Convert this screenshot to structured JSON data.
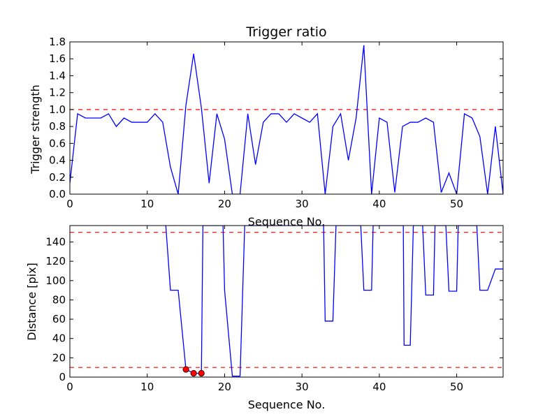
{
  "chart_data": [
    {
      "type": "line",
      "title": "Trigger ratio",
      "xlabel": "Sequence No.",
      "ylabel": "Trigger strength",
      "xlim": [
        0,
        56
      ],
      "ylim": [
        0,
        1.8
      ],
      "xticks": [
        0,
        10,
        20,
        30,
        40,
        50
      ],
      "yticks": [
        0.0,
        0.2,
        0.4,
        0.6,
        0.8,
        1.0,
        1.2,
        1.4,
        1.6,
        1.8
      ],
      "ytick_labels": [
        "0.0",
        "0.2",
        "0.4",
        "0.6",
        "0.8",
        "1.0",
        "1.2",
        "1.4",
        "1.6",
        "1.8"
      ],
      "grid": false,
      "series": [
        {
          "color": "#0000ff",
          "x": [
            0,
            1,
            2,
            3,
            4,
            5,
            6,
            7,
            8,
            9,
            10,
            11,
            12,
            13,
            14,
            15,
            16,
            17,
            18,
            19,
            20,
            21,
            22,
            23,
            24,
            25,
            26,
            27,
            28,
            29,
            30,
            31,
            32,
            33,
            34,
            35,
            36,
            37,
            38,
            39,
            40,
            41,
            42,
            43,
            44,
            45,
            46,
            47,
            48,
            49,
            50,
            51,
            52,
            53,
            54,
            55,
            56
          ],
          "values": [
            0.13,
            0.95,
            0.9,
            0.9,
            0.9,
            0.95,
            0.8,
            0.9,
            0.85,
            0.85,
            0.85,
            0.95,
            0.85,
            0.32,
            0.0,
            1.05,
            1.66,
            1.02,
            0.13,
            0.95,
            0.65,
            0.0,
            0.0,
            0.95,
            0.35,
            0.85,
            0.95,
            0.95,
            0.85,
            0.95,
            0.9,
            0.85,
            0.95,
            0.0,
            0.8,
            0.95,
            0.4,
            0.9,
            1.76,
            0.0,
            0.9,
            0.85,
            0.02,
            0.8,
            0.85,
            0.85,
            0.9,
            0.85,
            0.02,
            0.25,
            0.0,
            0.95,
            0.9,
            0.68,
            0.0,
            0.8,
            0.0
          ]
        }
      ],
      "hlines": [
        {
          "y": 1.0,
          "color": "#ff0000",
          "style": "dashed"
        }
      ]
    },
    {
      "type": "line",
      "title": "",
      "xlabel": "Sequence No.",
      "ylabel": "Distance [pix]",
      "xlim": [
        0,
        56
      ],
      "ylim": [
        0,
        157
      ],
      "xticks": [
        0,
        10,
        20,
        30,
        40,
        50
      ],
      "yticks": [
        0,
        20,
        40,
        60,
        80,
        100,
        120,
        140
      ],
      "ytick_labels": [
        "0",
        "20",
        "40",
        "60",
        "80",
        "100",
        "120",
        "140"
      ],
      "grid": false,
      "series": [
        {
          "color": "#0000ff",
          "x": [
            12.4,
            13,
            14,
            15,
            16,
            17,
            17.2,
            19.8,
            20,
            21,
            22,
            22.6,
            32.8,
            33,
            34,
            34.4,
            37.6,
            38,
            39,
            39.2,
            43.1,
            43.2,
            44,
            44.4,
            45.6,
            46,
            47,
            47.2,
            48.6,
            49,
            50,
            50.2,
            52.6,
            53,
            54,
            55,
            56
          ],
          "values": [
            157,
            90,
            90,
            8,
            4,
            4,
            157,
            157,
            90,
            1,
            1,
            157,
            157,
            58,
            58,
            157,
            157,
            90,
            90,
            157,
            157,
            33,
            33,
            157,
            157,
            85,
            85,
            157,
            157,
            89,
            89,
            157,
            157,
            90,
            90,
            112,
            112
          ]
        }
      ],
      "markers": {
        "color": "#ff0000",
        "x": [
          15,
          16,
          17
        ],
        "values": [
          8,
          4,
          4
        ]
      },
      "hlines": [
        {
          "y": 150,
          "color": "#ff0000",
          "style": "dashed"
        },
        {
          "y": 10,
          "color": "#ff0000",
          "style": "dashed"
        }
      ]
    }
  ]
}
